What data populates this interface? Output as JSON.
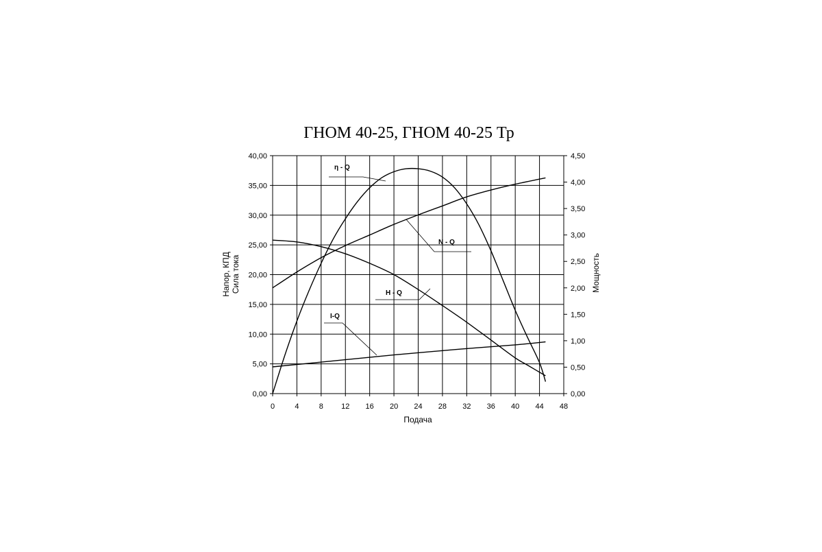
{
  "chart_data": {
    "type": "line",
    "title": "ГНОМ 40-25, ГНОМ 40-25 Тр",
    "xlabel": "Подача",
    "ylabel_left": [
      "Напор, КПД",
      "Сила тока"
    ],
    "ylabel_right": "Мощность",
    "xlim": [
      0,
      48
    ],
    "ylim_left": [
      0,
      40
    ],
    "ylim_right": [
      0,
      4.5
    ],
    "grid": true,
    "x_ticks": [
      "0",
      "4",
      "8",
      "12",
      "16",
      "20",
      "24",
      "28",
      "32",
      "36",
      "40",
      "44",
      "48"
    ],
    "y_left_ticks": [
      "0,00",
      "5,00",
      "10,00",
      "15,00",
      "20,00",
      "25,00",
      "30,00",
      "35,00",
      "40,00"
    ],
    "y_right_ticks": [
      "0,00",
      "0,50",
      "1,00",
      "1,50",
      "2,00",
      "2,50",
      "3,00",
      "3,50",
      "4,00",
      "4,50"
    ],
    "series": [
      {
        "name": "η - Q",
        "axis": "left",
        "x": [
          0,
          2,
          4,
          6,
          8,
          10,
          12,
          14,
          16,
          18,
          20,
          22,
          24,
          26,
          28,
          30,
          32,
          34,
          36,
          38,
          40,
          42,
          44,
          45
        ],
        "y": [
          0,
          6.4,
          12.2,
          17.3,
          21.9,
          26.0,
          29.4,
          32.3,
          34.6,
          36.3,
          37.3,
          37.8,
          37.8,
          37.4,
          36.4,
          34.6,
          31.9,
          28.4,
          24.0,
          19.0,
          14.0,
          9.5,
          5.2,
          2.0
        ]
      },
      {
        "name": "N - Q",
        "axis": "right",
        "x": [
          0,
          4,
          8,
          12,
          16,
          20,
          24,
          28,
          32,
          36,
          40,
          45
        ],
        "y": [
          2.0,
          2.3,
          2.57,
          2.8,
          3.0,
          3.2,
          3.38,
          3.55,
          3.72,
          3.85,
          3.96,
          4.08
        ]
      },
      {
        "name": "H - Q",
        "axis": "left",
        "x": [
          0,
          4,
          8,
          12,
          16,
          20,
          24,
          28,
          32,
          36,
          40,
          42,
          45
        ],
        "y": [
          25.8,
          25.5,
          24.7,
          23.5,
          21.9,
          20.0,
          17.5,
          14.8,
          12.0,
          9.0,
          6.0,
          4.8,
          3.0
        ]
      },
      {
        "name": "I-Q",
        "axis": "left",
        "x": [
          0,
          10,
          20,
          30,
          40,
          45
        ],
        "y": [
          4.5,
          5.5,
          6.5,
          7.4,
          8.2,
          8.7
        ]
      }
    ]
  }
}
